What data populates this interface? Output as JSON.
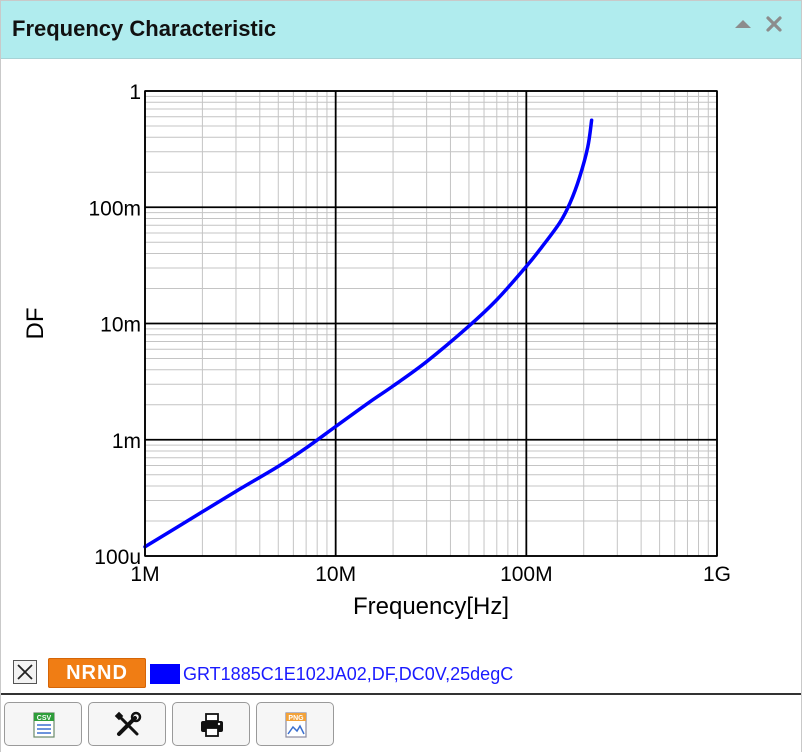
{
  "window": {
    "title": "Frequency Characteristic"
  },
  "chart_data": {
    "type": "line",
    "xlabel": "Frequency[Hz]",
    "ylabel": "DF",
    "xscale": "log",
    "yscale": "log",
    "xlim": [
      1000000,
      1000000000
    ],
    "ylim": [
      0.0001,
      1
    ],
    "xticks": [
      {
        "value": 1000000,
        "label": "1M"
      },
      {
        "value": 10000000,
        "label": "10M"
      },
      {
        "value": 100000000,
        "label": "100M"
      },
      {
        "value": 1000000000,
        "label": "1G"
      }
    ],
    "yticks": [
      {
        "value": 1,
        "label": "1"
      },
      {
        "value": 0.1,
        "label": "100m"
      },
      {
        "value": 0.01,
        "label": "10m"
      },
      {
        "value": 0.001,
        "label": "1m"
      },
      {
        "value": 0.0001,
        "label": "100u"
      }
    ],
    "grid": true,
    "series": [
      {
        "name": "GRT1885C1E102JA02,DF,DC0V,25degC",
        "color": "#0000ff",
        "x": [
          1000000,
          2000000,
          3000000,
          5000000,
          7000000,
          10000000,
          15000000,
          20000000,
          30000000,
          50000000,
          70000000,
          100000000,
          120000000,
          150000000,
          170000000,
          190000000,
          210000000,
          220000000
        ],
        "y": [
          0.00012,
          0.00024,
          0.00036,
          0.00059,
          0.00085,
          0.0013,
          0.0021,
          0.0029,
          0.0047,
          0.0095,
          0.016,
          0.031,
          0.045,
          0.074,
          0.11,
          0.18,
          0.33,
          0.56
        ]
      }
    ]
  },
  "legend": {
    "close_glyph": "✕",
    "badge": "NRND",
    "badge_color": "#f07d14",
    "series_label": "GRT1885C1E102JA02,DF,DC0V,25degC"
  },
  "toolbar": {
    "buttons": [
      {
        "icon": "csv-export-icon"
      },
      {
        "icon": "settings-tools-icon"
      },
      {
        "icon": "print-icon"
      },
      {
        "icon": "png-export-icon"
      }
    ]
  }
}
